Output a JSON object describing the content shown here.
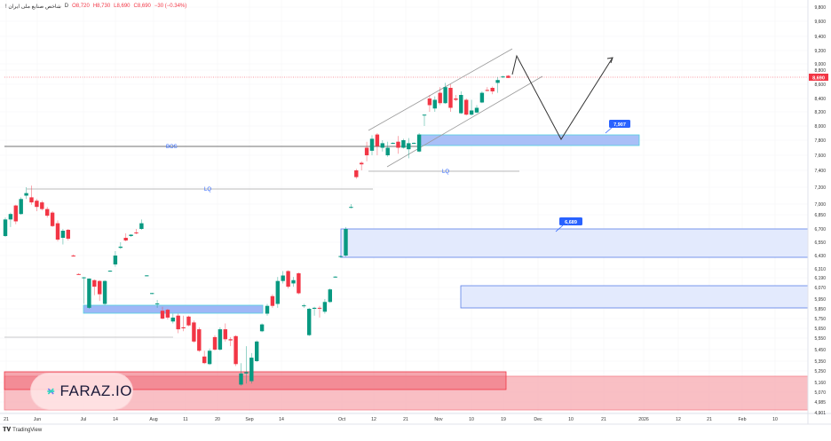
{
  "header": {
    "symbol": "! شاخص صنایع ملی ایران",
    "interval": "D",
    "open": "O8,720",
    "high": "H8,730",
    "low": "L8,690",
    "close": "C8,690",
    "change": "−30 (−0.34%)"
  },
  "colors": {
    "up": "#089981",
    "down": "#f23645",
    "zone_blue": "#2962ff",
    "zone_red": "#f23645"
  },
  "annotations": {
    "bos": "BOS",
    "lq_upper": "LQ",
    "lq_lower": "LQ",
    "target_1": "7,907",
    "target_2": "6,689",
    "last_price": "8,690"
  },
  "watermark": "FARAZ.IO",
  "footer": {
    "brand": "TradingView"
  },
  "chart_data": {
    "type": "candlestick",
    "title": "شاخص صنایع ملی ایران, D",
    "y_ticks": [
      "9,800",
      "9,600",
      "9,400",
      "9,200",
      "9,000",
      "8,800",
      "8,600",
      "8,400",
      "8,200",
      "8,000",
      "7,800",
      "7,600",
      "7,400",
      "7,200",
      "7,000",
      "6,850",
      "6,700",
      "6,550",
      "6,430",
      "6,310",
      "6,190",
      "6,070",
      "5,950",
      "5,850",
      "5,750",
      "5,650",
      "5,550",
      "5,450",
      "5,350",
      "5,250",
      "5,160",
      "5,070",
      "4,985",
      "4,901"
    ],
    "x_ticks": [
      "21",
      "Jun",
      "Jul",
      "14",
      "Aug",
      "11",
      "20",
      "Sep",
      "14",
      "Oct",
      "12",
      "21",
      "Nov",
      "10",
      "19",
      "Dec",
      "10",
      "21",
      "2026",
      "12",
      "21",
      "Feb",
      "10"
    ],
    "last_price": 8690,
    "zones": [
      {
        "label": "7,907",
        "from": 7750,
        "to": 7880
      },
      {
        "label": "6,689",
        "from": 6350,
        "to": 6700
      },
      {
        "label": "",
        "from": 5880,
        "to": 6110
      },
      {
        "label": "",
        "from": 5860,
        "to": 5920
      },
      {
        "label": "",
        "from": 5150,
        "to": 5260
      }
    ],
    "candles_ohlc": [
      [
        6620,
        6820,
        6610,
        6800
      ],
      [
        6800,
        6880,
        6720,
        6860
      ],
      [
        6980,
        6990,
        6750,
        6780
      ],
      [
        6860,
        7080,
        6850,
        7060
      ],
      [
        7100,
        7200,
        7060,
        7130
      ],
      [
        7080,
        7220,
        6990,
        7020
      ],
      [
        7040,
        7060,
        6900,
        6960
      ],
      [
        7020,
        7040,
        6910,
        6930
      ],
      [
        6930,
        6960,
        6820,
        6840
      ],
      [
        6880,
        6900,
        6720,
        6730
      ],
      [
        6760,
        6790,
        6560,
        6580
      ],
      [
        6600,
        6700,
        6530,
        6680
      ],
      [
        6690,
        6700,
        6570,
        6590
      ],
      [
        6430,
        6440,
        6420,
        6425
      ],
      [
        6240,
        6250,
        6230,
        6235
      ],
      [
        6190,
        6200,
        5900,
        6195
      ],
      [
        5860,
        6180,
        5850,
        6180
      ],
      [
        6160,
        6170,
        5990,
        6080
      ],
      [
        6150,
        6160,
        5930,
        6000
      ],
      [
        5900,
        6160,
        5890,
        6150
      ],
      [
        6280,
        6290,
        6270,
        6285
      ],
      [
        6350,
        6470,
        6330,
        6430
      ],
      [
        6500,
        6550,
        6490,
        6510
      ],
      [
        6600,
        6650,
        6560,
        6570
      ],
      [
        6620,
        6640,
        6610,
        6635
      ],
      [
        6660,
        6700,
        6640,
        6650
      ],
      [
        6700,
        6800,
        6690,
        6760
      ],
      [
        6220,
        6225,
        6210,
        6222
      ],
      [
        6010,
        6015,
        6000,
        6012
      ],
      [
        5900,
        5940,
        5860,
        5905
      ],
      [
        5830,
        5870,
        5740,
        5750
      ],
      [
        5840,
        5850,
        5740,
        5760
      ],
      [
        5720,
        5800,
        5700,
        5760
      ],
      [
        5780,
        5800,
        5600,
        5640
      ],
      [
        5660,
        5780,
        5620,
        5650
      ],
      [
        5770,
        5780,
        5670,
        5680
      ],
      [
        5710,
        5730,
        5510,
        5520
      ],
      [
        5640,
        5660,
        5430,
        5440
      ],
      [
        5390,
        5440,
        5320,
        5330
      ],
      [
        5320,
        5460,
        5310,
        5440
      ],
      [
        5560,
        5580,
        5440,
        5450
      ],
      [
        5450,
        5660,
        5440,
        5640
      ],
      [
        5640,
        5700,
        5520,
        5540
      ],
      [
        5540,
        5560,
        5480,
        5530
      ],
      [
        5570,
        5580,
        5300,
        5320
      ],
      [
        5140,
        5330,
        5130,
        5230
      ],
      [
        5230,
        5480,
        5150,
        5240
      ],
      [
        5170,
        5420,
        5150,
        5380
      ],
      [
        5350,
        5530,
        5340,
        5520
      ],
      [
        5620,
        5700,
        5610,
        5690
      ],
      [
        5800,
        5900,
        5780,
        5880
      ],
      [
        5980,
        6000,
        5860,
        5880
      ],
      [
        5900,
        6200,
        5860,
        6150
      ],
      [
        6150,
        6280,
        6120,
        6220
      ],
      [
        6280,
        6290,
        6060,
        6080
      ],
      [
        6120,
        6200,
        6080,
        6160
      ],
      [
        6250,
        6260,
        6000,
        6010
      ],
      [
        5880,
        5900,
        5860,
        5885
      ],
      [
        5580,
        5860,
        5570,
        5850
      ],
      [
        5850,
        5870,
        5780,
        5860
      ],
      [
        5860,
        5880,
        5760,
        5855
      ],
      [
        5820,
        5950,
        5800,
        5920
      ],
      [
        5920,
        6060,
        5910,
        6050
      ],
      [
        6200,
        6210,
        6190,
        6205
      ],
      [
        6420,
        6430,
        6410,
        6425
      ],
      [
        6430,
        6720,
        6420,
        6700
      ],
      [
        6950,
        7000,
        6940,
        6960
      ],
      [
        7400,
        7420,
        7300,
        7320
      ],
      [
        7500,
        7520,
        7400,
        7480
      ],
      [
        7700,
        7780,
        7520,
        7600
      ],
      [
        7660,
        7870,
        7600,
        7820
      ],
      [
        7880,
        7900,
        7600,
        7720
      ],
      [
        7700,
        7800,
        7650,
        7760
      ],
      [
        7600,
        7780,
        7580,
        7700
      ],
      [
        7760,
        7770,
        7750,
        7765
      ],
      [
        7780,
        7860,
        7620,
        7700
      ],
      [
        7700,
        7820,
        7690,
        7800
      ],
      [
        7680,
        7830,
        7560,
        7760
      ],
      [
        7760,
        7770,
        7750,
        7765
      ],
      [
        7650,
        7900,
        7640,
        7880
      ],
      [
        8150,
        8160,
        8000,
        8160
      ],
      [
        8400,
        8450,
        8200,
        8300
      ],
      [
        8250,
        8430,
        8200,
        8380
      ],
      [
        8480,
        8560,
        8300,
        8330
      ],
      [
        8330,
        8620,
        8320,
        8560
      ],
      [
        8550,
        8600,
        8200,
        8260
      ],
      [
        8400,
        8450,
        8360,
        8380
      ],
      [
        8180,
        8500,
        8170,
        8450
      ],
      [
        8380,
        8400,
        8150,
        8160
      ],
      [
        8160,
        8380,
        8150,
        8220
      ],
      [
        8190,
        8300,
        8180,
        8260
      ],
      [
        8340,
        8500,
        8330,
        8480
      ],
      [
        8520,
        8560,
        8500,
        8510
      ],
      [
        8550,
        8570,
        8460,
        8500
      ],
      [
        8620,
        8700,
        8480,
        8660
      ],
      [
        8700,
        8720,
        8690,
        8710
      ],
      [
        8720,
        8730,
        8690,
        8690
      ]
    ]
  }
}
